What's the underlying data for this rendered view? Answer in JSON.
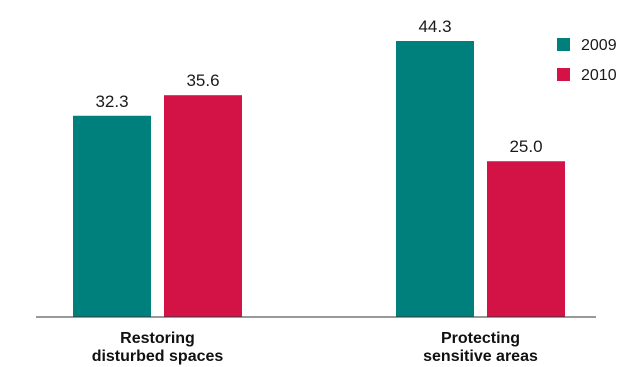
{
  "chart_data": {
    "type": "bar",
    "categories": [
      [
        "Restoring",
        "disturbed spaces"
      ],
      [
        "Protecting",
        "sensitive areas"
      ]
    ],
    "series": [
      {
        "name": "2009",
        "color": "#00807d",
        "values": [
          32.3,
          44.3
        ],
        "labels": [
          "32.3",
          "44.3"
        ]
      },
      {
        "name": "2010",
        "color": "#d31245",
        "values": [
          35.6,
          25.0
        ],
        "labels": [
          "35.6",
          "25.0"
        ]
      }
    ],
    "ylim": [
      0,
      50
    ],
    "grid": false,
    "legend": "top-right",
    "title": "",
    "xlabel": "",
    "ylabel": ""
  }
}
